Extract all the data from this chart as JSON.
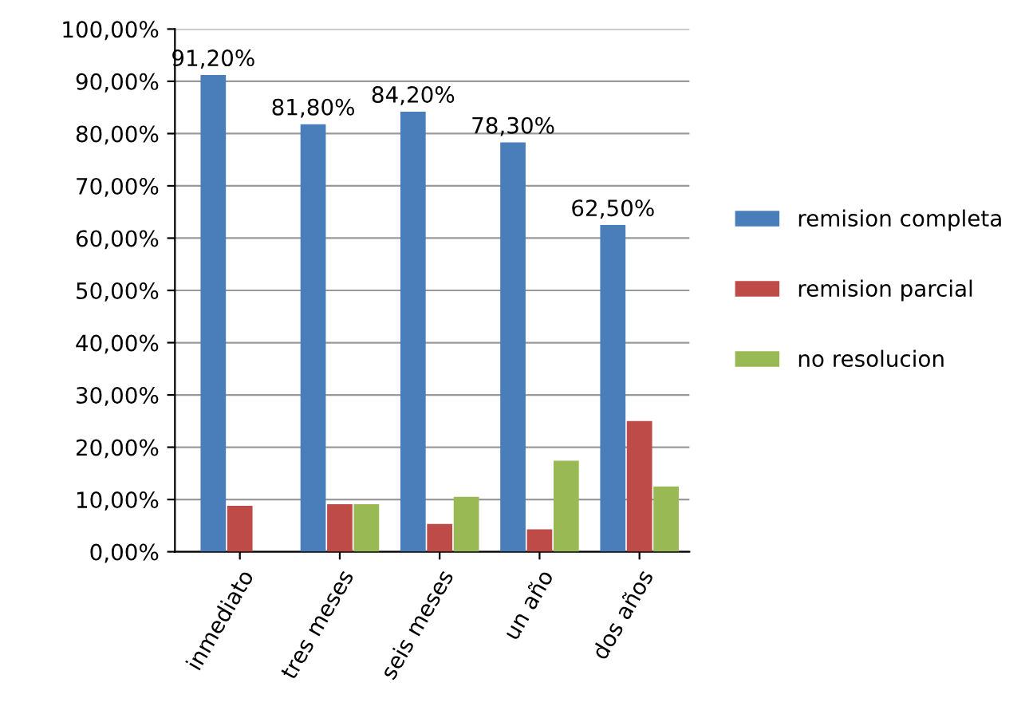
{
  "chart_data": {
    "type": "bar",
    "categories": [
      "inmediato",
      "tres meses",
      "seis meses",
      "un año",
      "dos años"
    ],
    "series": [
      {
        "name": "remision completa",
        "color": "#4a7ebb",
        "values": [
          91.2,
          81.8,
          84.2,
          78.3,
          62.5
        ],
        "value_labels": [
          "91,20%",
          "81,80%",
          "84,20%",
          "78,30%",
          "62,50%"
        ]
      },
      {
        "name": "remision parcial",
        "color": "#be4b48",
        "values": [
          8.8,
          9.1,
          5.3,
          4.3,
          25
        ]
      },
      {
        "name": "no resolucion",
        "color": "#98b954",
        "values": [
          0,
          9.1,
          10.5,
          17.4,
          12.5
        ]
      }
    ],
    "ylim": [
      0,
      100
    ],
    "yticks": [
      {
        "value": 0,
        "label": "0,00%"
      },
      {
        "value": 10,
        "label": "10,00%"
      },
      {
        "value": 20,
        "label": "20,00%"
      },
      {
        "value": 30,
        "label": "30,00%"
      },
      {
        "value": 40,
        "label": "40,00%"
      },
      {
        "value": 50,
        "label": "50,00%"
      },
      {
        "value": 60,
        "label": "60,00%"
      },
      {
        "value": 70,
        "label": "70,00%"
      },
      {
        "value": 80,
        "label": "80,00%"
      },
      {
        "value": 90,
        "label": "90,00%"
      },
      {
        "value": 100,
        "label": "100,00%"
      }
    ],
    "grid": "y",
    "legend": "right"
  }
}
